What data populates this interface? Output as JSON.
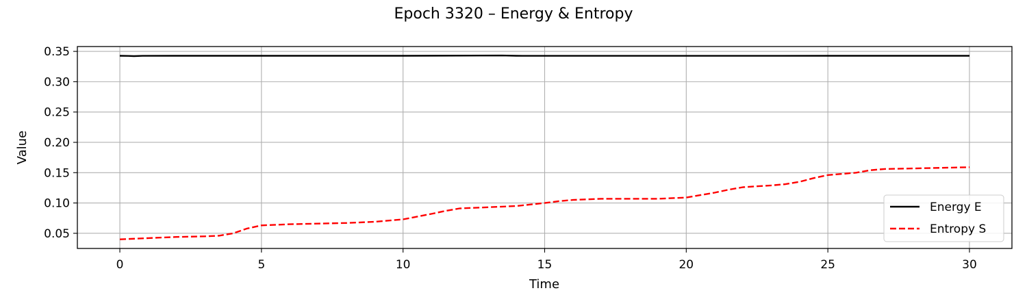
{
  "chart_data": {
    "type": "line",
    "title": "Epoch 3320 – Energy & Entropy",
    "xlabel": "Time",
    "ylabel": "Value",
    "xlim": [
      -1.5,
      31.5
    ],
    "ylim": [
      0.025,
      0.358
    ],
    "xticks": [
      0,
      5,
      10,
      15,
      20,
      25,
      30
    ],
    "xtick_labels": [
      "0",
      "5",
      "10",
      "15",
      "20",
      "25",
      "30"
    ],
    "yticks": [
      0.05,
      0.1,
      0.15,
      0.2,
      0.25,
      0.3,
      0.35
    ],
    "ytick_labels": [
      "0.05",
      "0.10",
      "0.15",
      "0.20",
      "0.25",
      "0.30",
      "0.35"
    ],
    "grid": true,
    "legend_position": "lower-right",
    "series": [
      {
        "name": "Energy E",
        "color": "#000000",
        "style": "solid",
        "x": [
          0,
          0.3,
          0.5,
          0.8,
          2,
          5,
          10,
          13.5,
          14,
          15,
          20,
          25,
          30
        ],
        "y": [
          0.3428,
          0.3425,
          0.3422,
          0.3427,
          0.3428,
          0.3428,
          0.3428,
          0.3432,
          0.3428,
          0.3427,
          0.3427,
          0.3428,
          0.3428
        ]
      },
      {
        "name": "Entropy S",
        "color": "#ff0000",
        "style": "dashed",
        "x": [
          0,
          1,
          2,
          3,
          3.5,
          4,
          4.5,
          5,
          6,
          7,
          8,
          9,
          10,
          11,
          11.5,
          12,
          13,
          14,
          15,
          15.5,
          16,
          17,
          18,
          19,
          20,
          21,
          21.5,
          22,
          23,
          23.5,
          24,
          24.5,
          25,
          26,
          26.5,
          27,
          28,
          29,
          30
        ],
        "y": [
          0.04,
          0.042,
          0.044,
          0.045,
          0.046,
          0.05,
          0.058,
          0.063,
          0.065,
          0.066,
          0.067,
          0.069,
          0.073,
          0.082,
          0.087,
          0.091,
          0.093,
          0.095,
          0.1,
          0.103,
          0.105,
          0.107,
          0.107,
          0.107,
          0.109,
          0.117,
          0.122,
          0.126,
          0.129,
          0.131,
          0.135,
          0.141,
          0.146,
          0.15,
          0.154,
          0.156,
          0.157,
          0.158,
          0.159
        ]
      }
    ]
  }
}
